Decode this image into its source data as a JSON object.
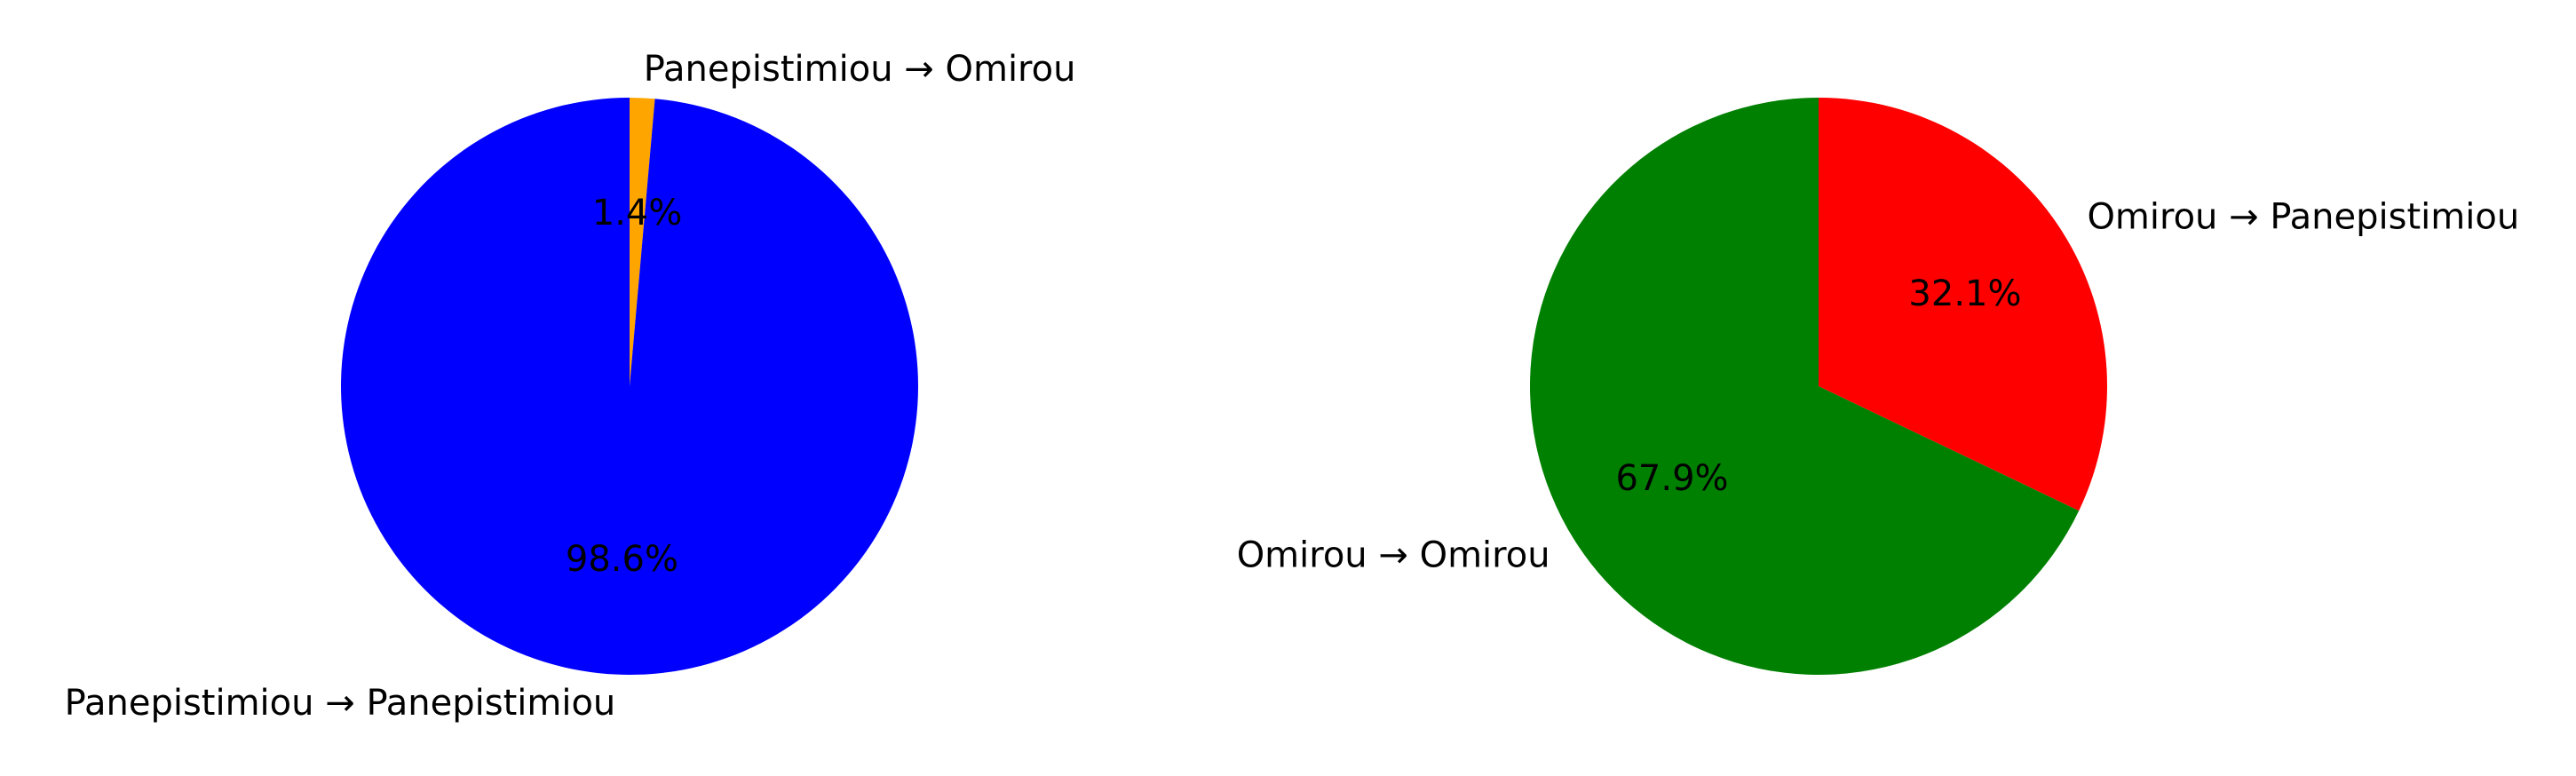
{
  "chart_data": [
    {
      "type": "pie",
      "start_angle_deg": 90,
      "direction": "clockwise",
      "slices": [
        {
          "label": "Panepistimiou → Omirou",
          "value": 1.4,
          "pct_text": "1.4%",
          "color": "#ffa500"
        },
        {
          "label": "Panepistimiou → Panepistimiou",
          "value": 98.6,
          "pct_text": "98.6%",
          "color": "#0000ff"
        }
      ]
    },
    {
      "type": "pie",
      "start_angle_deg": 90,
      "direction": "clockwise",
      "slices": [
        {
          "label": "Omirou → Panepistimiou",
          "value": 32.1,
          "pct_text": "32.1%",
          "color": "#ff0000"
        },
        {
          "label": "Omirou → Omirou",
          "value": 67.9,
          "pct_text": "67.9%",
          "color": "#008000"
        }
      ]
    }
  ]
}
